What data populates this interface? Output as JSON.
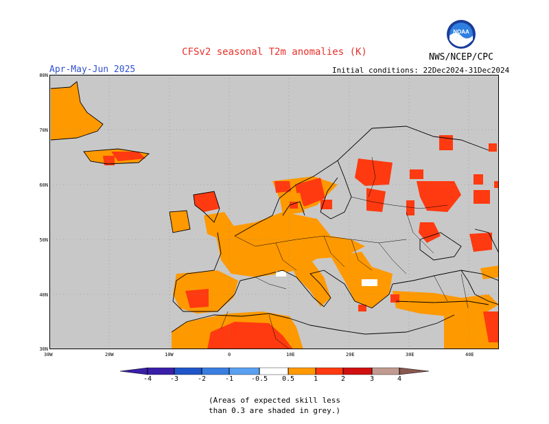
{
  "header": {
    "title": "CFSv2 seasonal T2m anomalies (K)",
    "agency": "NWS/NCEP/CPC",
    "logo_text": "NOAA",
    "period": "Apr-May-Jun 2025",
    "initial_conditions": "Initial conditions: 22Dec2024-31Dec2024"
  },
  "map": {
    "lat_labels": [
      "80N",
      "70N",
      "60N",
      "50N",
      "40N",
      "30N"
    ],
    "lon_labels": [
      "30W",
      "20W",
      "10W",
      "0",
      "10E",
      "20E",
      "30E",
      "40E"
    ],
    "lon_range": [
      -30,
      45
    ],
    "lat_range": [
      30,
      80
    ],
    "background_color": "#c8c8c8",
    "coastline_color": "#000000",
    "grid_style": "dotted"
  },
  "colorbar": {
    "labels": [
      "-4",
      "-3",
      "-2",
      "-1",
      "-0.5",
      "0.5",
      "1",
      "2",
      "3",
      "4"
    ],
    "colors": [
      "#3a1fa8",
      "#1f55c8",
      "#3a7ee0",
      "#5aa0f0",
      "#8cc0f8",
      "#ffffff",
      "#ff9900",
      "#ff3a10",
      "#d01010",
      "#a00000",
      "#c09a90",
      "#8a5850"
    ],
    "end_left_color": "#3a1fa8",
    "end_right_color": "#8a5850"
  },
  "footnote": {
    "line1": "(Areas of expected skill less",
    "line2": "than 0.3 are shaded in grey.)"
  }
}
